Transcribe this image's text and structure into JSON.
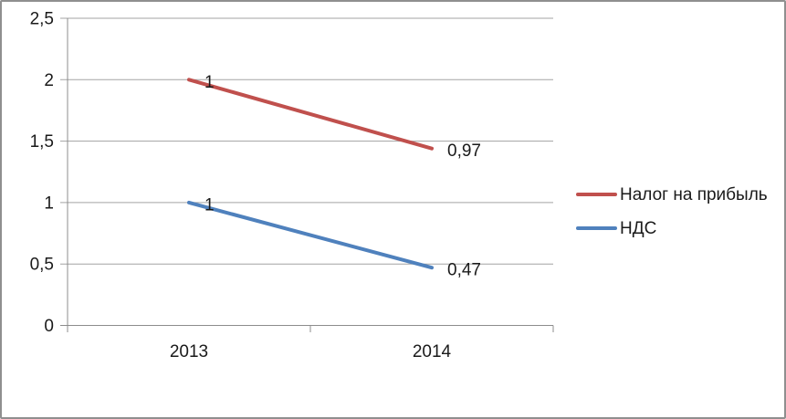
{
  "window": {
    "background": "#ffffff",
    "frame_border_color": "#8f8f8f"
  },
  "chart_data": {
    "type": "line",
    "stacked": true,
    "title": "",
    "categories": [
      "2013",
      "2014"
    ],
    "series": [
      {
        "name": "Налог на прибыль",
        "color": "#C0504D",
        "values": [
          1,
          0.97
        ],
        "point_labels": [
          "1",
          "0,97"
        ],
        "axis_positions": [
          2,
          1.44
        ]
      },
      {
        "name": "НДС",
        "color": "#4F81BD",
        "values": [
          1,
          0.47
        ],
        "point_labels": [
          "1",
          "0,47"
        ],
        "axis_positions": [
          1,
          0.47
        ]
      }
    ],
    "x_axis": {
      "tick_labels": [
        "2013",
        "2014"
      ]
    },
    "y_axis": {
      "min": 0,
      "max": 2.5,
      "tick_values": [
        0,
        0.5,
        1,
        1.5,
        2,
        2.5
      ],
      "tick_labels": [
        "0",
        "0,5",
        "1",
        "1,5",
        "2",
        "2,5"
      ]
    },
    "grid": true,
    "legend_position": "right",
    "colors": {
      "gridline": "#a3a3a3",
      "axis": "#8c8c8c",
      "text": "#1a1a1a"
    }
  }
}
